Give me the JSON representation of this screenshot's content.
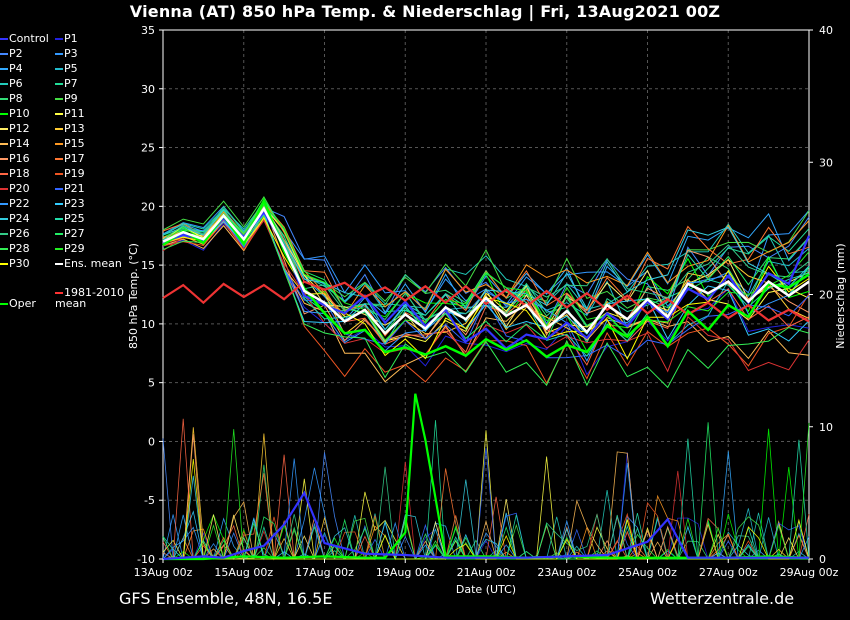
{
  "title": "Vienna  (AT)  850 hPa Temp. & Niederschlag | Fri, 13Aug2021 00Z",
  "footer": {
    "left": "GFS Ensemble, 48N, 16.5E",
    "right": "Wetterzentrale.de"
  },
  "chart_data": {
    "type": "line",
    "title": "Vienna  (AT)  850 hPa Temp. & Niederschlag | Fri, 13Aug2021 00Z",
    "xlabel": "Date (UTC)",
    "ylabel": "850 hPa Temp. (°C)",
    "ylabel_right": "Niederschlag (mm)",
    "x_ticks": [
      "13Aug 00z",
      "15Aug 00z",
      "17Aug 00z",
      "19Aug 00z",
      "21Aug 00z",
      "23Aug 00z",
      "25Aug 00z",
      "27Aug 00z",
      "29Aug 00z"
    ],
    "y_ticks": [
      "35",
      "30",
      "25",
      "20",
      "15",
      "10",
      "5",
      "0",
      "-5",
      "-10"
    ],
    "y2_ticks": [
      "40",
      "30",
      "20",
      "10",
      "0"
    ],
    "ylim": [
      -10,
      35
    ],
    "y2lim": [
      0,
      40
    ],
    "x_range_days": [
      0,
      16
    ],
    "grid": true,
    "legend_position": "left",
    "legend": [
      {
        "label": "Control",
        "color": "#3333ff"
      },
      {
        "label": "P1",
        "color": "#2222dd"
      },
      {
        "label": "P2",
        "color": "#4488ff"
      },
      {
        "label": "P3",
        "color": "#3399ff"
      },
      {
        "label": "P4",
        "color": "#33aaff"
      },
      {
        "label": "P5",
        "color": "#22bbcc"
      },
      {
        "label": "P6",
        "color": "#22ccbb"
      },
      {
        "label": "P7",
        "color": "#22dd99"
      },
      {
        "label": "P8",
        "color": "#33dd77"
      },
      {
        "label": "P9",
        "color": "#44dd44"
      },
      {
        "label": "P10",
        "color": "#00ff00"
      },
      {
        "label": "P11",
        "color": "#ffff44"
      },
      {
        "label": "P12",
        "color": "#ffee66"
      },
      {
        "label": "P13",
        "color": "#ffcc33"
      },
      {
        "label": "P14",
        "color": "#ffbb55"
      },
      {
        "label": "P15",
        "color": "#ff9922"
      },
      {
        "label": "P16",
        "color": "#ff9966"
      },
      {
        "label": "P17",
        "color": "#ff7733"
      },
      {
        "label": "P18",
        "color": "#ff6644"
      },
      {
        "label": "P19",
        "color": "#ee5522"
      },
      {
        "label": "P20",
        "color": "#dd3333"
      },
      {
        "label": "P21",
        "color": "#3366ff"
      },
      {
        "label": "P22",
        "color": "#3399ff"
      },
      {
        "label": "P23",
        "color": "#33ccff"
      },
      {
        "label": "P24",
        "color": "#33ccdd"
      },
      {
        "label": "P25",
        "color": "#22ddaa"
      },
      {
        "label": "P26",
        "color": "#33cc88"
      },
      {
        "label": "P27",
        "color": "#22ee66"
      },
      {
        "label": "P28",
        "color": "#33ee55"
      },
      {
        "label": "P29",
        "color": "#22ee22"
      },
      {
        "label": "P30",
        "color": "#ffff00"
      },
      {
        "label": "Ens. mean",
        "color": "#ffffff"
      },
      {
        "label": "Oper",
        "color": "#00ff00"
      },
      {
        "label": "1981-2010 mean",
        "color": "#ff3333"
      }
    ],
    "series": [
      {
        "name": "Ens. mean",
        "color": "#ffffff",
        "x": [
          0,
          0.5,
          1,
          1.5,
          2,
          2.5,
          3,
          3.5,
          4,
          4.5,
          5,
          5.5,
          6,
          6.5,
          7,
          7.5,
          8,
          8.5,
          9,
          9.5,
          10,
          10.5,
          11,
          11.5,
          12,
          12.5,
          13,
          13.5,
          14,
          14.5,
          15,
          15.5,
          16
        ],
        "values": [
          17,
          17.8,
          17.2,
          19.2,
          17.2,
          19.8,
          16.5,
          12.8,
          11.8,
          10.2,
          11.2,
          9.2,
          10.8,
          9.6,
          11.4,
          10.4,
          12.2,
          10.7,
          11.6,
          9.6,
          11.1,
          9.3,
          11.6,
          10.4,
          12.1,
          10.6,
          13.4,
          12.6,
          13.6,
          11.9,
          13.6,
          12.4,
          13.6
        ]
      },
      {
        "name": "Oper",
        "color": "#00ff00",
        "x": [
          0,
          0.5,
          1,
          1.5,
          2,
          2.5,
          3,
          3.5,
          4,
          4.5,
          5,
          5.5,
          6,
          6.5,
          7,
          7.5,
          8,
          8.5,
          9,
          9.5,
          10,
          10.5,
          11,
          11.5,
          12,
          12.5,
          13,
          13.5,
          14,
          14.5,
          15,
          15.5,
          16
        ],
        "values": [
          16.7,
          17.9,
          16.9,
          19.2,
          16.8,
          20.5,
          16.2,
          13.0,
          10.9,
          9.2,
          9.5,
          7.6,
          8.0,
          7.4,
          8.1,
          7.3,
          8.7,
          7.8,
          8.6,
          7.2,
          8.2,
          7.6,
          9.8,
          8.9,
          10.6,
          8.1,
          11.1,
          9.5,
          11.6,
          10.6,
          13.4,
          13.1,
          14.2
        ]
      },
      {
        "name": "Control",
        "color": "#3333ff",
        "x": [
          0,
          0.5,
          1,
          1.5,
          2,
          2.5,
          3,
          3.5,
          4,
          4.5,
          5,
          5.5,
          6,
          6.5,
          7,
          7.5,
          8,
          8.5,
          9,
          9.5,
          10,
          10.5,
          11,
          11.5,
          12,
          12.5,
          13,
          13.5,
          14,
          14.5,
          15,
          15.5,
          16
        ],
        "values": [
          16.9,
          17.6,
          17.1,
          19.0,
          17.4,
          19.5,
          16.6,
          12.4,
          11.6,
          10.9,
          12.4,
          10.1,
          11.9,
          9.8,
          11.2,
          8.5,
          9.6,
          7.9,
          9.1,
          8.7,
          10.1,
          8.8,
          10.9,
          9.8,
          11.9,
          10.4,
          13.0,
          12.1,
          14.1,
          11.8,
          14.3,
          13.4,
          17.5
        ]
      },
      {
        "name": "1981-2010 mean",
        "color": "#ee3333",
        "x": [
          0,
          0.5,
          1,
          1.5,
          2,
          2.5,
          3,
          3.5,
          4,
          4.5,
          5,
          5.5,
          6,
          6.5,
          7,
          7.5,
          8,
          8.5,
          9,
          9.5,
          10,
          10.5,
          11,
          11.5,
          12,
          12.5,
          13,
          13.5,
          14,
          14.5,
          15,
          15.5,
          16
        ],
        "values": [
          12.2,
          13.3,
          11.8,
          13.4,
          12.3,
          13.3,
          12.1,
          13.6,
          12.9,
          13.5,
          12.3,
          13.1,
          12.0,
          13.2,
          11.8,
          13.2,
          11.7,
          12.9,
          11.5,
          12.8,
          11.4,
          12.6,
          11.2,
          12.4,
          10.9,
          12.1,
          10.8,
          11.8,
          10.5,
          11.6,
          10.3,
          11.2,
          10.2
        ]
      }
    ],
    "precip_series": [
      {
        "name": "Oper precip",
        "color": "#00ff00",
        "x": [
          0,
          1,
          2,
          3,
          4,
          5,
          5.5,
          6,
          6.25,
          6.5,
          7,
          8,
          9,
          10,
          11,
          12,
          13,
          14,
          15,
          16
        ],
        "values": [
          0,
          0,
          0.2,
          0.1,
          0.2,
          0.1,
          0.1,
          2.0,
          12.5,
          9.0,
          0.2,
          0.2,
          0.1,
          0.2,
          0.1,
          0.1,
          0.1,
          0.1,
          0.2,
          0.1
        ]
      },
      {
        "name": "Control precip",
        "color": "#3333ff",
        "x": [
          0,
          1,
          1.5,
          2,
          2.5,
          3,
          3.5,
          4,
          5,
          6,
          7,
          8,
          9,
          10,
          11,
          12,
          12.5,
          13,
          14,
          15,
          16
        ],
        "values": [
          0,
          0.2,
          0.1,
          0.6,
          1.0,
          2.6,
          5.0,
          1.2,
          0.4,
          0.3,
          0.1,
          0.1,
          0.1,
          0.2,
          0.3,
          1.3,
          3.0,
          0.1,
          0.1,
          0.1,
          0.1
        ]
      }
    ]
  }
}
